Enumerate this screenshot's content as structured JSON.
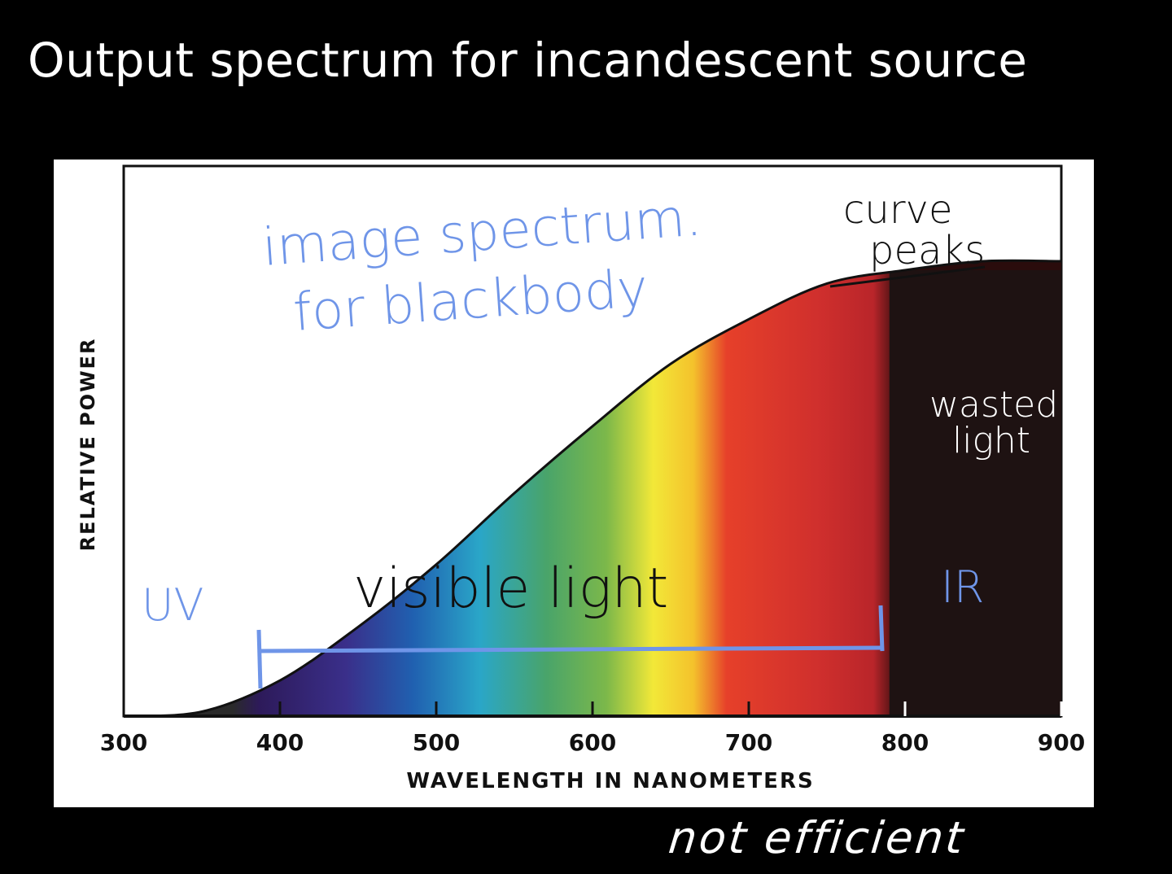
{
  "slide": {
    "title": "Output spectrum for incandescent source",
    "bottom_note": "not efficient"
  },
  "chart_data": {
    "type": "area",
    "title": "",
    "xlabel": "WAVELENGTH IN NANOMETERS",
    "ylabel": "RELATIVE POWER",
    "xlim": [
      300,
      900
    ],
    "ylim": [
      0,
      1
    ],
    "x_ticks": [
      300,
      400,
      500,
      600,
      700,
      800,
      900
    ],
    "grid": false,
    "fill": "visible spectrum gradient (violet to red), black beyond 790 nm",
    "series": [
      {
        "x": [
          300,
          350,
          400,
          450,
          500,
          550,
          600,
          650,
          700,
          750,
          800,
          850,
          900
        ],
        "values": [
          0.0,
          0.01,
          0.08,
          0.2,
          0.34,
          0.5,
          0.65,
          0.79,
          0.89,
          0.97,
          1.0,
          1.02,
          1.02
        ]
      }
    ],
    "annotations": {
      "image_spectrum": "image spectrum.",
      "for_blackbody": "for blackbody",
      "curve": "curve",
      "peaks": "peaks",
      "wasted": "wasted",
      "light": "light",
      "uv": "UV",
      "visible_light": "visible light",
      "ir": "IR"
    },
    "annotation_colors": {
      "blue": "#6f95e8",
      "black": "#111111",
      "white": "#ffffff"
    },
    "spectrum_colors": [
      "#2d1a5a",
      "#3a2f8a",
      "#2060b0",
      "#2aa6c8",
      "#49a46a",
      "#7cb84a",
      "#f2e838",
      "#f4c22c",
      "#e6402a",
      "#cf2f2d",
      "#b9252a",
      "#2a0c0c",
      "#1e1212"
    ]
  }
}
